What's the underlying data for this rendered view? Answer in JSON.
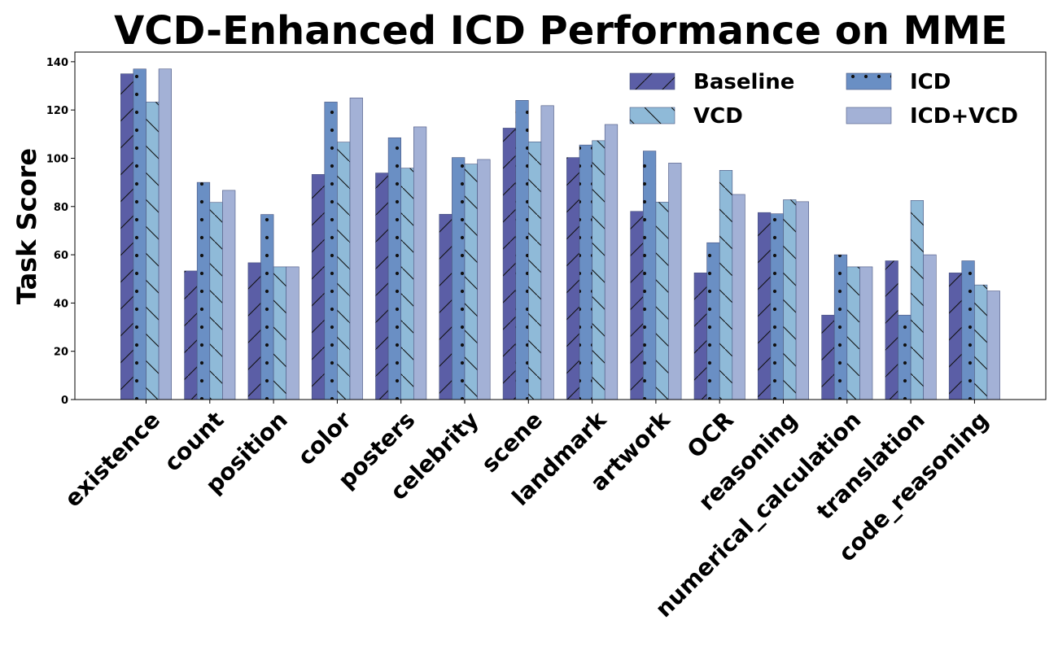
{
  "chart_data": {
    "type": "bar",
    "title": "VCD-Enhanced ICD Performance on MME",
    "xlabel": "",
    "ylabel": "Task Score",
    "ylim": [
      0,
      144
    ],
    "yticks": [
      0,
      20,
      40,
      60,
      80,
      100,
      120,
      140
    ],
    "categories": [
      "existence",
      "count",
      "position",
      "color",
      "posters",
      "celebrity",
      "scene",
      "landmark",
      "artwork",
      "OCR",
      "reasoning",
      "numerical_calculation",
      "translation",
      "code_reasoning"
    ],
    "legend_position": "top-right",
    "series": [
      {
        "name": "Baseline",
        "color": "#5b5ea6",
        "pattern": "forward-diagonal",
        "values": [
          135,
          53.3,
          56.7,
          93.3,
          93.9,
          76.8,
          112.5,
          100.3,
          78,
          52.5,
          77.5,
          35,
          57.5,
          52.5
        ]
      },
      {
        "name": "ICD",
        "color": "#6a8fc4",
        "pattern": "dots",
        "values": [
          137,
          90,
          76.7,
          123.3,
          108.5,
          100.3,
          124,
          105.5,
          103,
          65,
          77,
          60,
          35,
          57.5
        ]
      },
      {
        "name": "VCD",
        "color": "#8fbad8",
        "pattern": "back-diagonal",
        "values": [
          123.3,
          81.7,
          55,
          106.7,
          95.9,
          97.6,
          106.8,
          107.3,
          81.8,
          95,
          82.8,
          55,
          82.5,
          47.5
        ]
      },
      {
        "name": "ICD+VCD",
        "color": "#a3b1d6",
        "pattern": "none",
        "values": [
          137,
          86.7,
          55,
          125,
          113,
          99.5,
          121.8,
          114,
          98,
          85,
          82,
          55,
          60,
          45
        ]
      }
    ]
  }
}
